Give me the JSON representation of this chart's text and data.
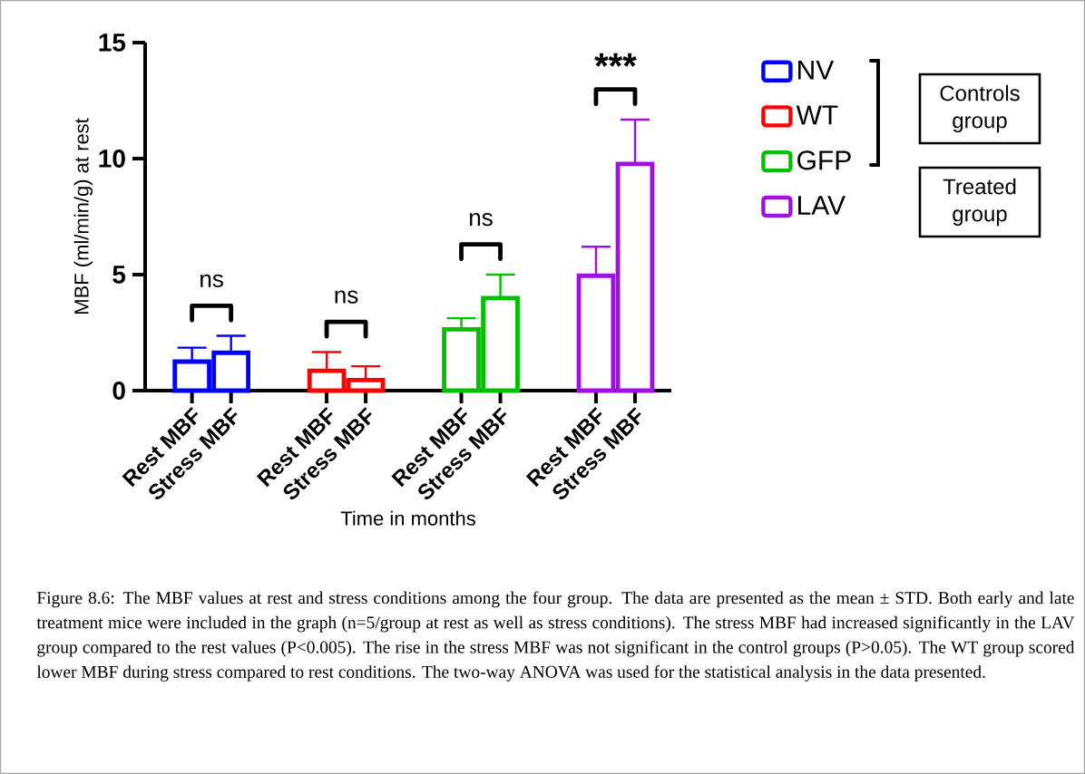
{
  "chart_data": {
    "type": "bar",
    "categories": [
      "Rest MBF",
      "Stress MBF",
      "Rest MBF",
      "Stress MBF",
      "Rest MBF",
      "Stress MBF",
      "Rest MBF",
      "Stress MBF"
    ],
    "series": [
      {
        "name": "NV",
        "color": "#0000ff",
        "values": [
          1.25,
          1.63,
          null,
          null,
          null,
          null,
          null,
          null
        ],
        "errors": [
          [
            1.25,
            1.85
          ],
          [
            1.63,
            2.36
          ],
          null,
          null,
          null,
          null,
          null,
          null
        ]
      },
      {
        "name": "WT",
        "color": "#ff0000",
        "values": [
          null,
          null,
          0.85,
          0.45,
          null,
          null,
          null,
          null
        ],
        "errors": [
          null,
          null,
          [
            0.85,
            1.66
          ],
          [
            0.45,
            1.05
          ],
          null,
          null,
          null,
          null
        ]
      },
      {
        "name": "GFP",
        "color": "#00c000",
        "values": [
          null,
          null,
          null,
          null,
          2.64,
          3.99,
          null,
          null
        ],
        "errors": [
          null,
          null,
          null,
          null,
          [
            2.64,
            3.12
          ],
          [
            3.99,
            5.0
          ],
          null,
          null
        ]
      },
      {
        "name": "LAV",
        "color": "#a010e0",
        "values": [
          null,
          null,
          null,
          null,
          null,
          null,
          4.95,
          9.77
        ],
        "errors": [
          null,
          null,
          null,
          null,
          null,
          null,
          [
            4.95,
            6.2
          ],
          [
            9.77,
            11.68
          ]
        ]
      }
    ],
    "ylim": [
      0,
      15
    ],
    "yticks": [
      0,
      5,
      10,
      15
    ],
    "ylabel": "MBF (ml/min/g) at rest",
    "xlabel": "Time in months",
    "legend": "right",
    "annotations": [
      "ns",
      "ns",
      "ns",
      "***",
      "Controls group",
      "Treated group",
      "Figure 8.6: The MBF values at rest and stress conditions among the four group. The data are presented as the mean ± STD. Both early and late treatment mice were included in the graph (n=5/group at rest as well as stress conditions). The stress MBF had increased significantly in the LAV group compared to the rest values (P<0.005). The rise in the stress MBF was not significant in the control groups (P>0.05). The WT group scored lower MBF during stress compared to rest conditions. The two-way ANOVA was used for the statistical analysis in the data presented."
    ]
  }
}
